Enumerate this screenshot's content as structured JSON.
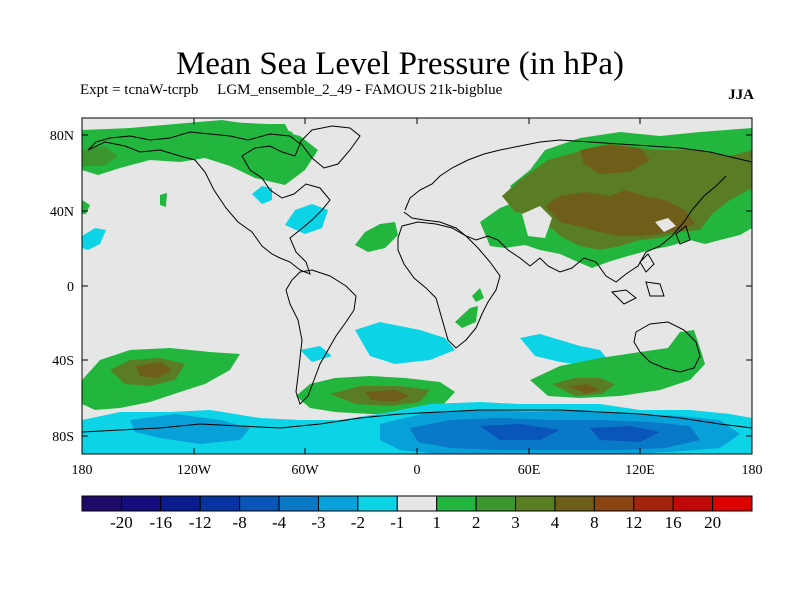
{
  "title": "Mean Sea Level Pressure (in hPa)",
  "subtitle": {
    "expt": "Expt = tcnaW-tcrpb",
    "run": "LGM_ensemble_2_49 - FAMOUS 21k-bigblue"
  },
  "season": "JJA",
  "map": {
    "lat_ticks": [
      "80N",
      "40N",
      "0",
      "40S",
      "80S"
    ],
    "lon_ticks": [
      "180",
      "120W",
      "60W",
      "0",
      "60E",
      "120E",
      "180"
    ],
    "background_color": "#e6e6e6"
  },
  "colorbar": {
    "labels": [
      "-20",
      "-16",
      "-12",
      "-8",
      "-4",
      "-3",
      "-2",
      "-1",
      "1",
      "2",
      "3",
      "4",
      "8",
      "12",
      "16",
      "20"
    ],
    "colors": [
      "#1f0a6b",
      "#150d7e",
      "#0b1c8f",
      "#0733a3",
      "#0a55ba",
      "#0878c7",
      "#07a0d8",
      "#0cd3e6",
      "#e6e6e6",
      "#23b63f",
      "#3b9630",
      "#597c25",
      "#6e5e19",
      "#8a4512",
      "#a2240c",
      "#c10808",
      "#dd0000"
    ]
  }
}
